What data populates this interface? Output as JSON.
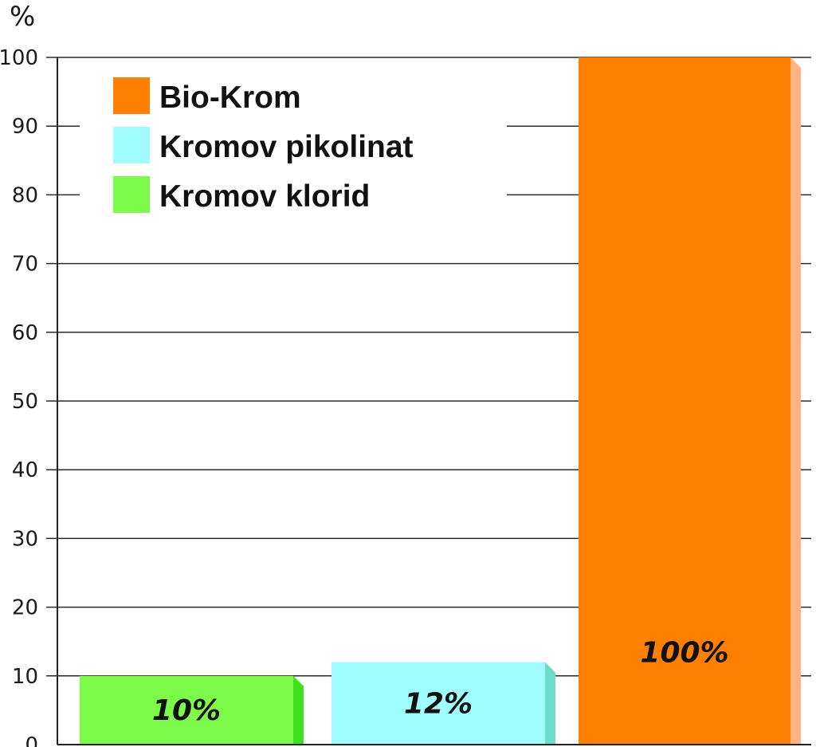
{
  "chart_data": {
    "type": "bar",
    "ylabel": "%",
    "ylim": [
      0,
      100
    ],
    "yticks": [
      0,
      10,
      20,
      30,
      40,
      50,
      60,
      70,
      80,
      90,
      100
    ],
    "grid": true,
    "legend_position": "top-left",
    "series": [
      {
        "name": "Kromov klorid",
        "value": 10,
        "label": "10%",
        "color": "#7dfa4a",
        "side_color": "#3fe01e"
      },
      {
        "name": "Kromov pikolinat",
        "value": 12,
        "label": "12%",
        "color": "#a0fdff",
        "side_color": "#6fdcc8"
      },
      {
        "name": "Bio-Krom",
        "value": 100,
        "label": "100%",
        "color": "#ff8000",
        "side_color": "#ffb383"
      }
    ],
    "legend_order": [
      "Bio-Krom",
      "Kromov pikolinat",
      "Kromov klorid"
    ]
  }
}
